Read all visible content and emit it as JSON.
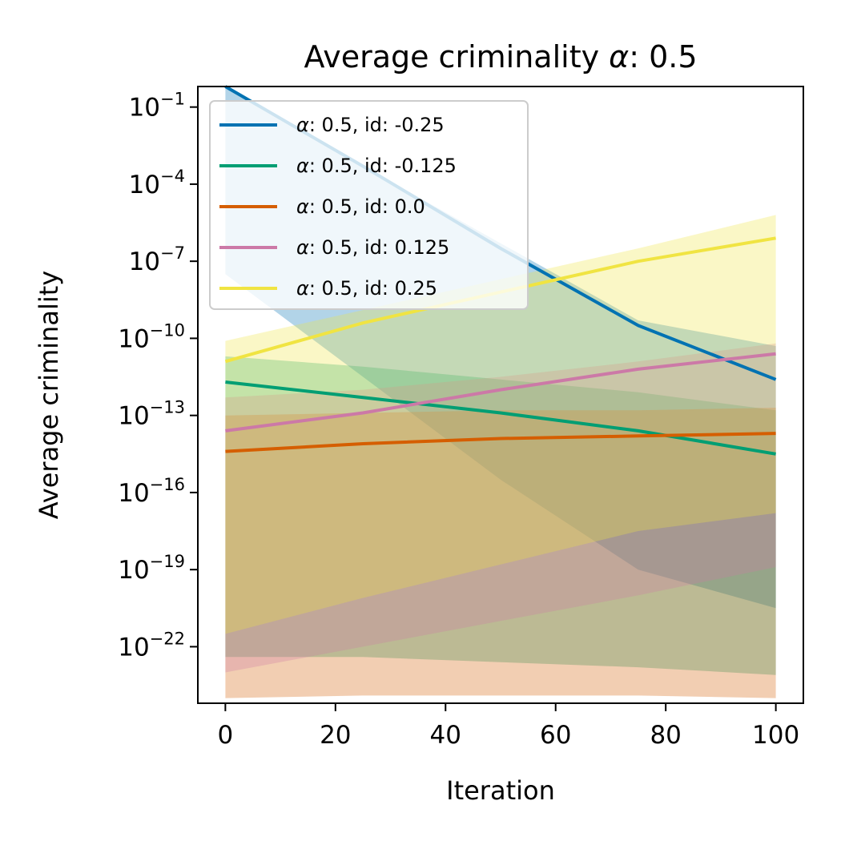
{
  "chart_data": {
    "type": "line",
    "title_prefix": "Average criminality ",
    "title_symbol": "α",
    "title_suffix": ": 0.5",
    "xlabel": "Iteration",
    "ylabel": "Average criminality",
    "xlim": [
      -5,
      105
    ],
    "ylim_log10": [
      -24.2,
      -0.2
    ],
    "log_y": true,
    "grid": false,
    "legend_position": "top-left",
    "x_ticks": [
      0,
      20,
      40,
      60,
      80,
      100
    ],
    "x_tick_labels": [
      "0",
      "20",
      "40",
      "60",
      "80",
      "100"
    ],
    "y_ticks_log10": [
      -1,
      -4,
      -7,
      -10,
      -13,
      -16,
      -19,
      -22
    ],
    "y_tick_base": "10",
    "y_tick_exponents": [
      "−1",
      "−4",
      "−7",
      "−10",
      "−13",
      "−16",
      "−19",
      "−22"
    ],
    "x": [
      0,
      25,
      50,
      75,
      100
    ],
    "series": [
      {
        "name_symbol": "α",
        "name_text": ": 0.5, id: -0.25",
        "color": "#0072b2",
        "log10_values": [
          -0.2,
          -3.3,
          -6.5,
          -9.5,
          -11.6
        ],
        "band_upper_log10": [
          -0.2,
          -3.3,
          -6.3,
          -9.3,
          -10.3
        ],
        "band_lower_log10": [
          -7.5,
          -11.5,
          -15.5,
          -19.0,
          -20.5
        ],
        "band_opacity": 0.3
      },
      {
        "name_symbol": "α",
        "name_text": ": 0.5, id: -0.125",
        "color": "#009e73",
        "log10_values": [
          -11.7,
          -12.3,
          -12.9,
          -13.6,
          -14.5
        ],
        "band_upper_log10": [
          -10.7,
          -11.1,
          -11.6,
          -12.1,
          -12.8
        ],
        "band_lower_log10": [
          -22.4,
          -22.4,
          -22.6,
          -22.8,
          -23.1
        ],
        "band_opacity": 0.3
      },
      {
        "name_symbol": "α",
        "name_text": ": 0.5, id: 0.0",
        "color": "#d55e00",
        "log10_values": [
          -14.4,
          -14.1,
          -13.9,
          -13.8,
          -13.7
        ],
        "band_upper_log10": [
          -13.0,
          -12.9,
          -12.8,
          -12.8,
          -12.7
        ],
        "band_lower_log10": [
          -24.0,
          -23.9,
          -23.9,
          -23.9,
          -24.0
        ],
        "band_opacity": 0.3
      },
      {
        "name_symbol": "α",
        "name_text": ": 0.5, id: 0.125",
        "color": "#cc79a7",
        "log10_values": [
          -13.6,
          -12.9,
          -12.0,
          -11.2,
          -10.6
        ],
        "band_upper_log10": [
          -12.3,
          -12.0,
          -11.5,
          -10.9,
          -10.2
        ],
        "band_lower_log10": [
          -23.0,
          -22.0,
          -21.0,
          -20.0,
          -18.9
        ],
        "band_opacity": 0.3
      },
      {
        "name_symbol": "α",
        "name_text": ": 0.5, id: 0.25",
        "color": "#f0e442",
        "log10_values": [
          -10.9,
          -9.4,
          -8.2,
          -7.0,
          -6.1
        ],
        "band_upper_log10": [
          -10.1,
          -8.9,
          -7.7,
          -6.5,
          -5.2
        ],
        "band_lower_log10": [
          -21.5,
          -20.1,
          -18.8,
          -17.5,
          -16.8
        ],
        "band_opacity": 0.3
      }
    ]
  }
}
